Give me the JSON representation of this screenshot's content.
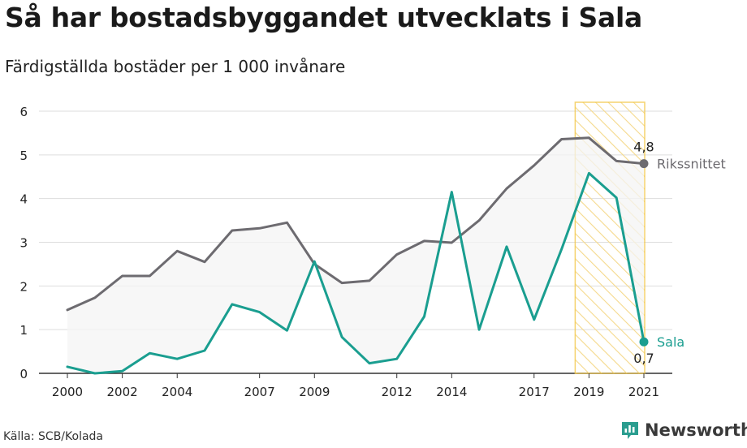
{
  "header": {
    "title": "Så har bostadsbyggandet utvecklats i Sala",
    "subtitle": "Färdigställda bostäder per 1 000 invånare"
  },
  "footer": {
    "source": "Källa: SCB/Kolada",
    "brand": "Newsworthy"
  },
  "colors": {
    "riket": "#6d6b70",
    "sala": "#1a9e90",
    "highlight": "#f3c84a",
    "grid": "#dddddd",
    "band": "#f4f4f4"
  },
  "icons": {
    "brand": "newsworthy-logo-icon"
  },
  "chart_data": {
    "type": "line",
    "x": [
      2000,
      2001,
      2002,
      2003,
      2004,
      2005,
      2006,
      2007,
      2008,
      2009,
      2010,
      2011,
      2012,
      2013,
      2014,
      2015,
      2016,
      2017,
      2018,
      2019,
      2020,
      2021
    ],
    "series": [
      {
        "name": "Rikssnittet",
        "color": "#6d6b70",
        "values": [
          1.45,
          1.73,
          2.23,
          2.23,
          2.8,
          2.55,
          3.27,
          3.32,
          3.45,
          2.5,
          2.07,
          2.12,
          2.72,
          3.03,
          2.99,
          3.5,
          4.23,
          4.76,
          5.36,
          5.39,
          4.86,
          4.8
        ],
        "end_label": "4,8"
      },
      {
        "name": "Sala",
        "color": "#1a9e90",
        "values": [
          0.15,
          0.0,
          0.05,
          0.46,
          0.33,
          0.52,
          1.58,
          1.4,
          0.98,
          2.56,
          0.83,
          0.23,
          0.33,
          1.3,
          4.15,
          1.0,
          2.9,
          1.23,
          2.84,
          4.58,
          4.02,
          0.72
        ],
        "end_label": "0,7"
      }
    ],
    "x_ticks": [
      2000,
      2002,
      2004,
      2007,
      2009,
      2012,
      2014,
      2017,
      2019,
      2021
    ],
    "y_ticks": [
      0,
      1,
      2,
      3,
      4,
      5,
      6
    ],
    "ylim": [
      0,
      6
    ],
    "xlim": [
      2000,
      2021
    ],
    "highlight_range": [
      2019,
      2021
    ],
    "grid": "horizontal",
    "xlabel": "",
    "ylabel": ""
  }
}
